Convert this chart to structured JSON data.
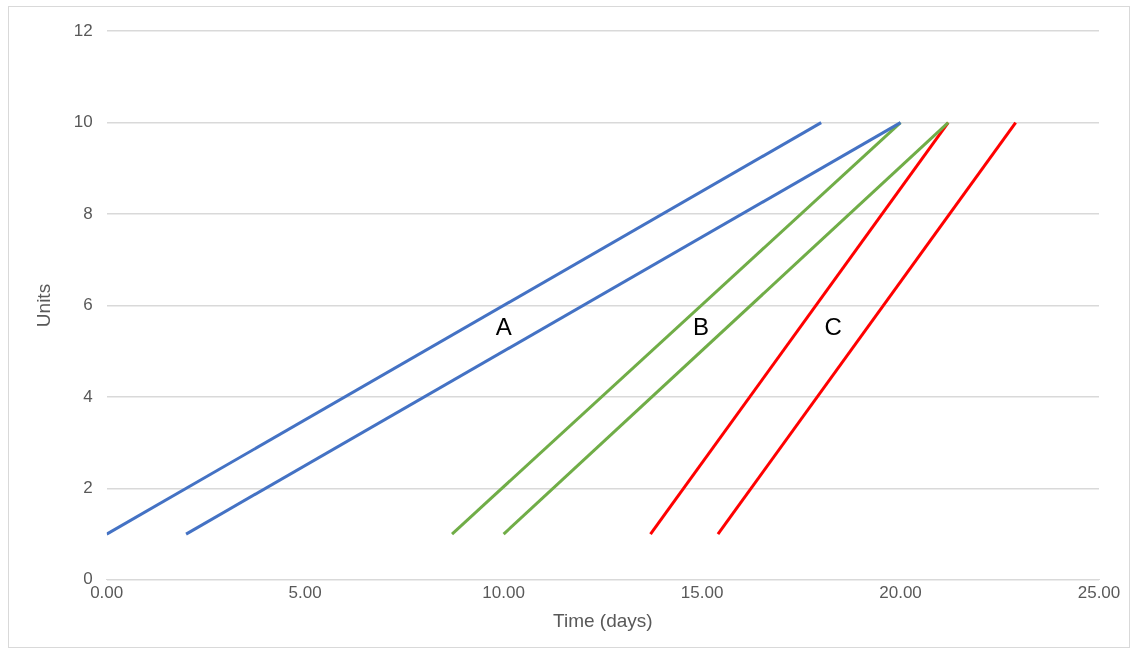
{
  "chart_data": {
    "type": "line",
    "xlabel": "Time (days)",
    "ylabel": "Units",
    "series": [
      {
        "color": "#4472c4",
        "x": [
          0,
          18
        ],
        "values": [
          1,
          10
        ]
      },
      {
        "color": "#4472c4",
        "x": [
          2,
          20
        ],
        "values": [
          1,
          10
        ]
      },
      {
        "color": "#70ad47",
        "x": [
          8.7,
          20
        ],
        "values": [
          1,
          10
        ]
      },
      {
        "color": "#70ad47",
        "x": [
          10,
          21.2
        ],
        "values": [
          1,
          10
        ]
      },
      {
        "color": "#ff0000",
        "x": [
          13.7,
          21.2
        ],
        "values": [
          1,
          10
        ]
      },
      {
        "color": "#ff0000",
        "x": [
          15.4,
          22.9
        ],
        "values": [
          1,
          10
        ]
      }
    ],
    "annotations": [
      "A",
      "B",
      "C"
    ],
    "xlim": [
      0,
      25
    ],
    "xticks": [
      {
        "value": 0,
        "label": "0.00"
      },
      {
        "value": 5,
        "label": "5.00"
      },
      {
        "value": 10,
        "label": "10.00"
      },
      {
        "value": 15,
        "label": "15.00"
      },
      {
        "value": 20,
        "label": "20.00"
      },
      {
        "value": 25,
        "label": "25.00"
      }
    ],
    "ylim": [
      0,
      12
    ],
    "yticks": [
      0,
      2,
      4,
      6,
      8,
      10,
      12
    ],
    "grid": "y",
    "legend": false,
    "marker": "none",
    "line_style": "solid"
  }
}
